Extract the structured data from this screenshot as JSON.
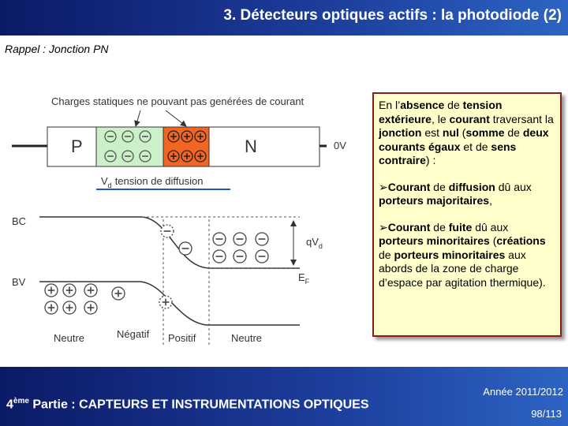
{
  "header": {
    "title": "3. Détecteurs optiques actifs : la photodiode (2)"
  },
  "subtitle": "Rappel : Jonction PN",
  "diagram": {
    "caption": "Charges statiques ne pouvant pas genérées de courant",
    "p_label": "P",
    "n_label": "N",
    "voltage": "0V",
    "vd_symbol": "V",
    "vd_sub": "d",
    "vd_text": "tension de diffusion",
    "bc": "BC",
    "bv": "BV",
    "qvd": "qV",
    "qvd_sub": "d",
    "ef": "E",
    "ef_sub": "F",
    "zones": [
      "Neutre",
      "Négatif",
      "Positif",
      "Neutre"
    ]
  },
  "textbox": {
    "paragraphs": [
      {
        "runs": [
          {
            "text": "En l’",
            "bold": false
          },
          {
            "text": "absence",
            "bold": true
          },
          {
            "text": " de ",
            "bold": false
          },
          {
            "text": "tension extérieure",
            "bold": true
          },
          {
            "text": ", le ",
            "bold": false
          },
          {
            "text": "courant",
            "bold": true
          },
          {
            "text": " traversant la ",
            "bold": false
          },
          {
            "text": "jonction",
            "bold": true
          },
          {
            "text": " est ",
            "bold": false
          },
          {
            "text": "nul",
            "bold": true
          },
          {
            "text": " (",
            "bold": false
          },
          {
            "text": "somme",
            "bold": true
          },
          {
            "text": " de ",
            "bold": false
          },
          {
            "text": "deux courants égaux",
            "bold": true
          },
          {
            "text": " et de ",
            "bold": false
          },
          {
            "text": "sens contraire",
            "bold": true
          },
          {
            "text": ") :",
            "bold": false
          }
        ]
      },
      {
        "bullet": true,
        "runs": [
          {
            "text": "Courant",
            "bold": true
          },
          {
            "text": " de ",
            "bold": false
          },
          {
            "text": "diffusion",
            "bold": true
          },
          {
            "text": " dû aux ",
            "bold": false
          },
          {
            "text": "porteurs majoritaires",
            "bold": true
          },
          {
            "text": ",",
            "bold": false
          }
        ]
      },
      {
        "bullet": true,
        "runs": [
          {
            "text": "Courant",
            "bold": true
          },
          {
            "text": " de ",
            "bold": false
          },
          {
            "text": "fuite",
            "bold": true
          },
          {
            "text": " dû aux ",
            "bold": false
          },
          {
            "text": "porteurs minoritaires",
            "bold": true
          },
          {
            "text": " (",
            "bold": false
          },
          {
            "text": "créations",
            "bold": true
          },
          {
            "text": " de ",
            "bold": false
          },
          {
            "text": "porteurs minoritaires",
            "bold": true
          },
          {
            "text": " aux abords de la zone de charge d’espace par agitation thermique).",
            "bold": false
          }
        ]
      }
    ]
  },
  "footer": {
    "part_number": "4",
    "part_sup": "ème",
    "part_text": "Partie : CAPTEURS ET INSTRUMENTATIONS OPTIQUES",
    "year": "Année 2011/2012",
    "page": "98/113"
  }
}
